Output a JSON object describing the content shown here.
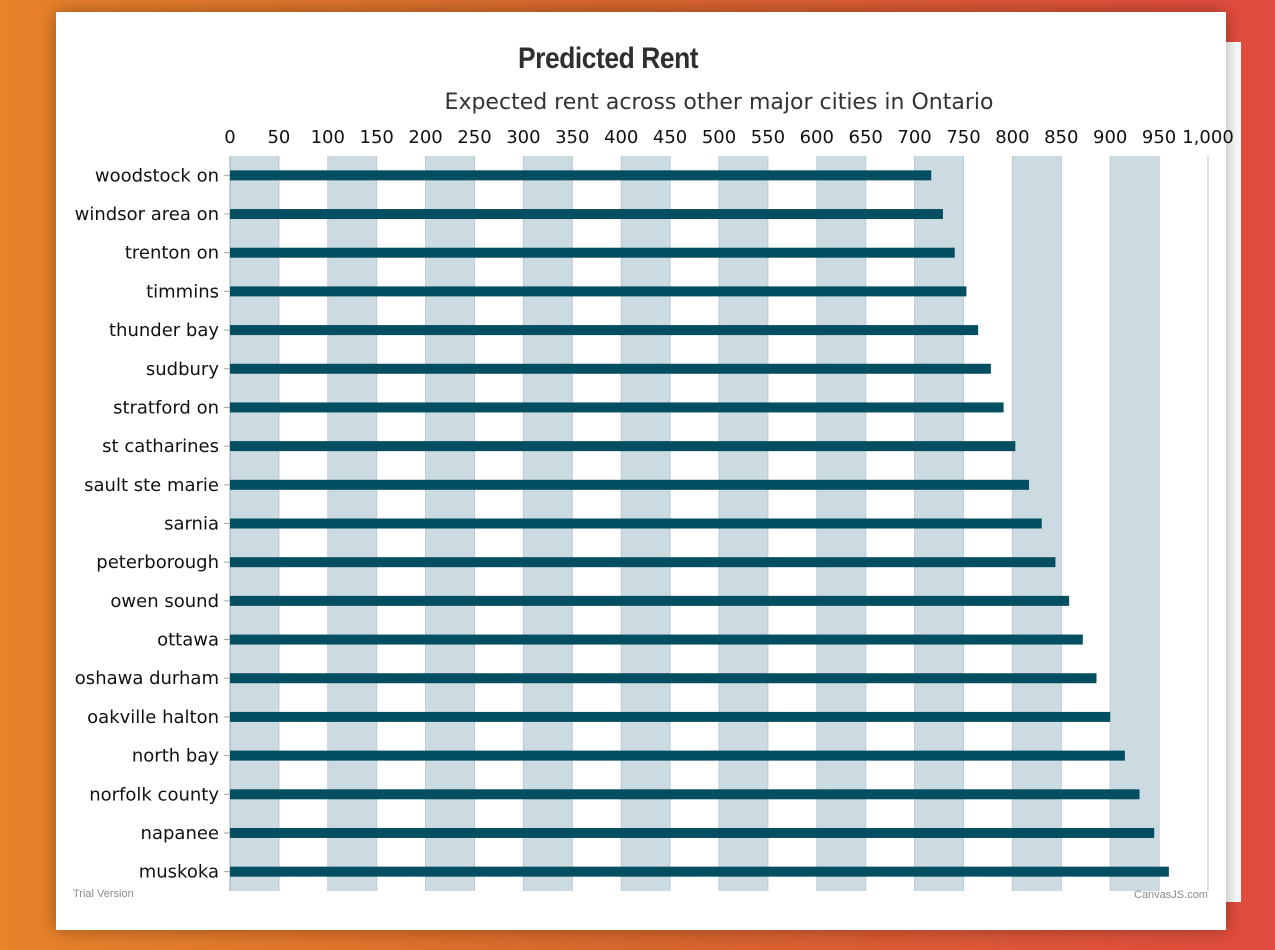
{
  "chart_data": {
    "type": "bar",
    "orientation": "horizontal",
    "title": "Predicted Rent",
    "subtitle": "Expected rent across other major cities in Ontario",
    "xlabel": "",
    "ylabel": "",
    "xlim": [
      0,
      1000
    ],
    "x_interval": 50,
    "x_tick_labels": [
      "0",
      "50",
      "100",
      "150",
      "200",
      "250",
      "300",
      "350",
      "400",
      "450",
      "500",
      "550",
      "600",
      "650",
      "700",
      "750",
      "800",
      "850",
      "900",
      "950",
      "1,000"
    ],
    "axis_position": "top",
    "grid": "alternating bands",
    "categories": [
      "woodstock on",
      "windsor area on",
      "trenton on",
      "timmins",
      "thunder bay",
      "sudbury",
      "stratford on",
      "st catharines",
      "sault ste marie",
      "sarnia",
      "peterborough",
      "owen sound",
      "ottawa",
      "oshawa durham",
      "oakville halton",
      "north bay",
      "norfolk county",
      "napanee",
      "muskoka"
    ],
    "values": [
      717,
      729,
      741,
      753,
      765,
      778,
      791,
      803,
      817,
      830,
      844,
      858,
      872,
      886,
      900,
      915,
      930,
      945,
      960
    ],
    "bar_color": "#044e61",
    "band_color": "#ccdbe1"
  },
  "watermark": {
    "left": "Trial Version",
    "right": "CanvasJS.com"
  }
}
